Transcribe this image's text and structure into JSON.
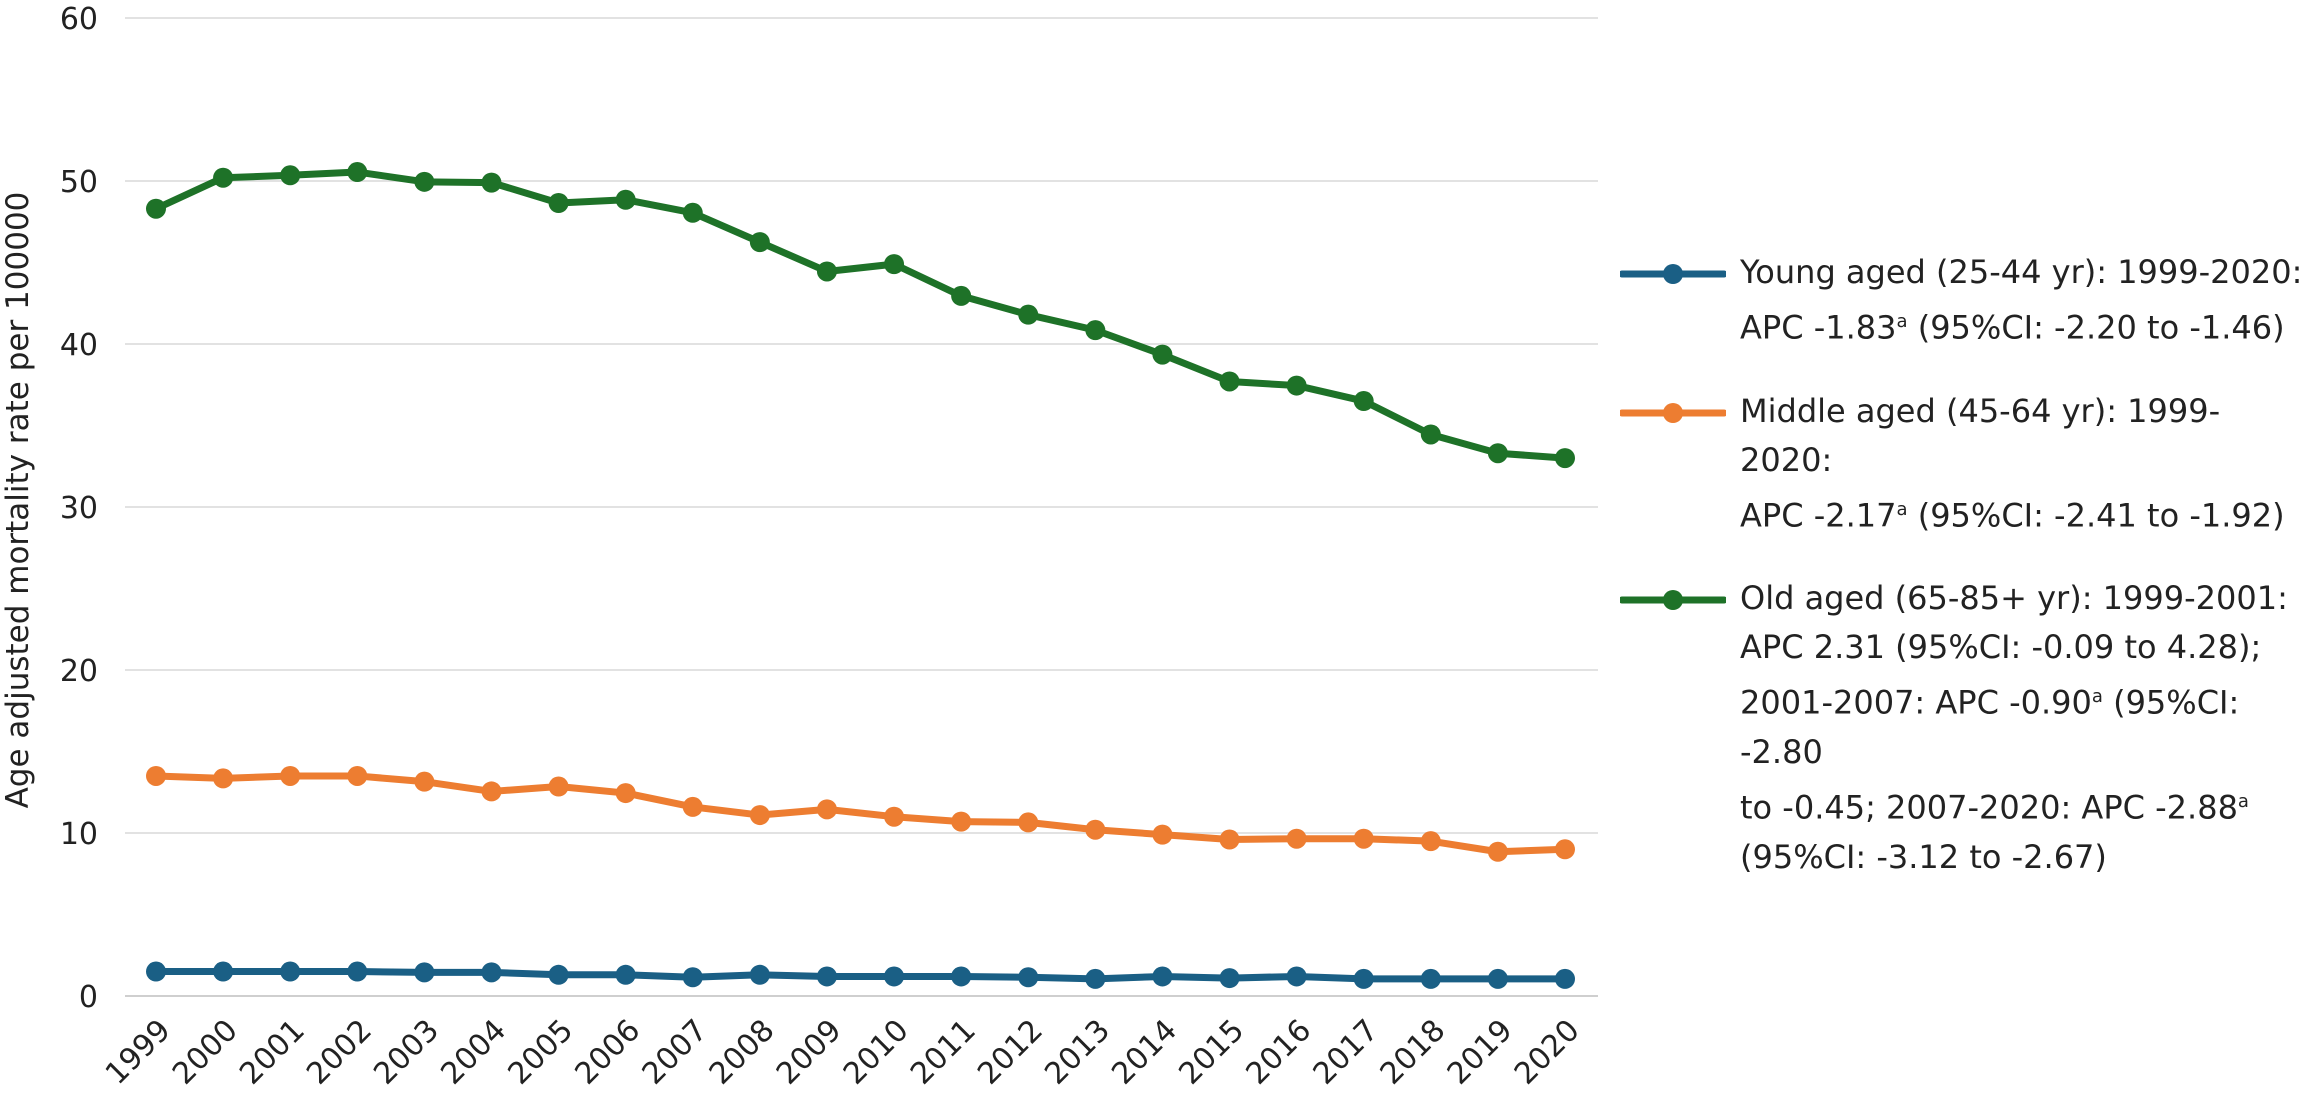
{
  "chart_data": {
    "type": "line",
    "title": "",
    "xlabel": "",
    "ylabel": "Age adjusted mortality rate per 100000",
    "ylim": [
      0,
      60
    ],
    "yticks": [
      0,
      10,
      20,
      30,
      40,
      50,
      60
    ],
    "grid": "horizontal",
    "legend_position": "right",
    "categories": [
      "1999",
      "2000",
      "2001",
      "2002",
      "2003",
      "2004",
      "2005",
      "2006",
      "2007",
      "2008",
      "2009",
      "2010",
      "2011",
      "2012",
      "2013",
      "2014",
      "2015",
      "2016",
      "2017",
      "2018",
      "2019",
      "2020"
    ],
    "series": [
      {
        "color": "#1a5f85",
        "values": [
          1.5,
          1.5,
          1.5,
          1.5,
          1.45,
          1.45,
          1.3,
          1.3,
          1.15,
          1.3,
          1.2,
          1.2,
          1.2,
          1.15,
          1.05,
          1.2,
          1.1,
          1.2,
          1.05,
          1.05,
          1.05,
          1.05
        ],
        "legend": {
          "line1": "Young aged (25-44 yr): 1999-2020:",
          "line2_before": "APC -1.83",
          "line2_sup": "a",
          "line2_after": " (95%CI: -2.20 to -1.46)"
        }
      },
      {
        "color": "#ed7d31",
        "values": [
          13.5,
          13.35,
          13.5,
          13.5,
          13.15,
          12.55,
          12.85,
          12.45,
          11.6,
          11.1,
          11.45,
          11.0,
          10.7,
          10.65,
          10.2,
          9.9,
          9.6,
          9.65,
          9.65,
          9.5,
          8.85,
          9.0
        ],
        "legend": {
          "line1": "Middle aged (45-64 yr): 1999-2020:",
          "line2_before": "APC -2.17",
          "line2_sup": "a",
          "line2_after": " (95%CI: -2.41 to -1.92)"
        }
      },
      {
        "color": "#1e7228",
        "values": [
          48.3,
          50.2,
          50.35,
          50.55,
          49.95,
          49.9,
          48.65,
          48.85,
          48.05,
          46.25,
          44.45,
          44.9,
          42.95,
          41.8,
          40.85,
          39.35,
          37.7,
          37.45,
          36.5,
          34.45,
          33.3,
          33.0
        ],
        "legend": {
          "line1": "Old aged (65-85+ yr): 1999-2001:",
          "line2": "APC 2.31 (95%CI: -0.09 to 4.28);",
          "line3_before": "2001-2007: APC -0.90",
          "line3_sup": "a",
          "line3_after": " (95%CI: -2.80",
          "line4_before": "to -0.45; 2007-2020: APC -2.88",
          "line4_sup": "a",
          "line5": "(95%CI: -3.12 to -2.67)"
        }
      }
    ]
  }
}
